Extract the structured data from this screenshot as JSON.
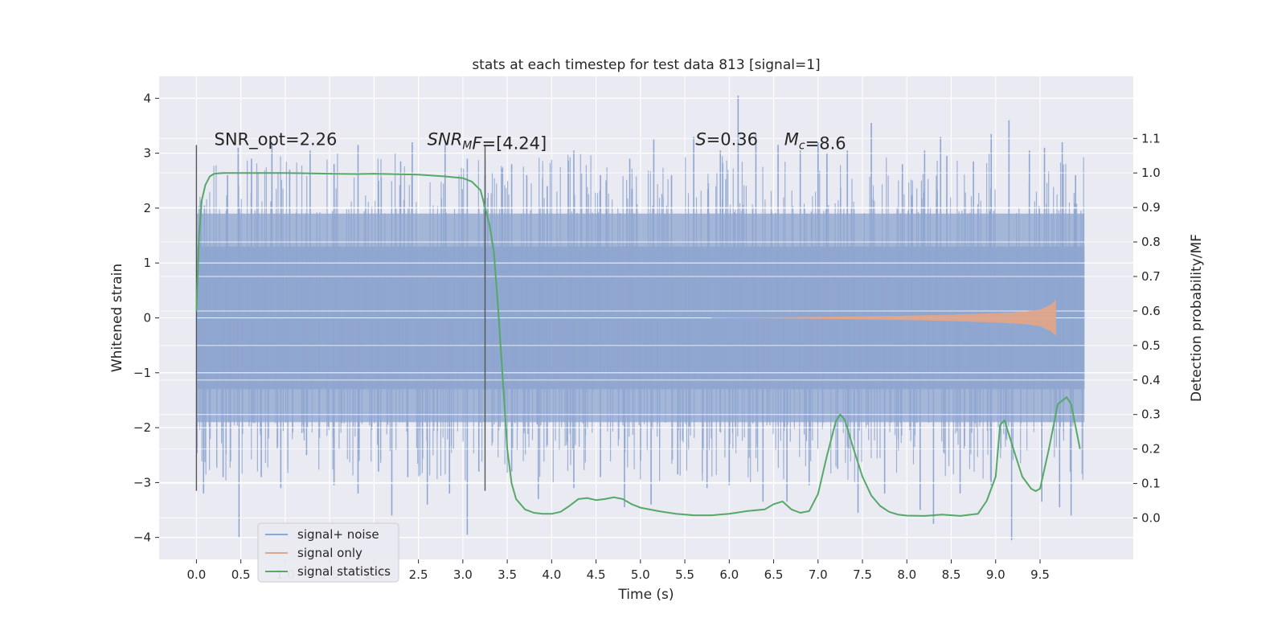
{
  "chart_data": {
    "type": "line",
    "title": "stats at each timestep for test data 813 [signal=1]",
    "xlabel": "Time (s)",
    "ylabel": "Whitened strain",
    "y2label": "Detection probability/MF",
    "xlim": [
      -0.42,
      10.55
    ],
    "ylim": [
      -4.4,
      4.4
    ],
    "y2lim": [
      -0.12,
      1.28
    ],
    "xticks": [
      0.0,
      0.5,
      1.0,
      1.5,
      2.0,
      2.5,
      3.0,
      3.5,
      4.0,
      4.5,
      5.0,
      5.5,
      6.0,
      6.5,
      7.0,
      7.5,
      8.0,
      8.5,
      9.0,
      9.5
    ],
    "xtick_labels": [
      "0.0",
      "0.5",
      "1.0",
      "1.5",
      "2.0",
      "2.5",
      "3.0",
      "3.5",
      "4.0",
      "4.5",
      "5.0",
      "5.5",
      "6.0",
      "6.5",
      "7.0",
      "7.5",
      "8.0",
      "8.5",
      "9.0",
      "9.5"
    ],
    "yticks": [
      -4,
      -3,
      -2,
      -1,
      0,
      1,
      2,
      3,
      4
    ],
    "ytick_labels": [
      "−4",
      "−3",
      "−2",
      "−1",
      "0",
      "1",
      "2",
      "3",
      "4"
    ],
    "y2ticks": [
      0.0,
      0.1,
      0.2,
      0.3,
      0.4,
      0.5,
      0.6,
      0.7,
      0.8,
      0.9,
      1.0,
      1.1
    ],
    "y2tick_labels": [
      "0.0",
      "0.1",
      "0.2",
      "0.3",
      "0.4",
      "0.5",
      "0.6",
      "0.7",
      "0.8",
      "0.9",
      "1.0",
      "1.1"
    ],
    "series": [
      {
        "name": "signal+ noise",
        "axis": "left",
        "color": "#8fa6d0",
        "x_range": [
          0.0,
          10.0
        ],
        "band_quantiles": {
          "q05": -1.9,
          "q20": -1.3,
          "q80": 1.3,
          "q95": 1.9
        },
        "spike_peaks": [
          [
            0.09,
            2.05
          ],
          [
            0.35,
            2.6
          ],
          [
            0.47,
            3.1
          ],
          [
            0.62,
            2.9
          ],
          [
            0.85,
            3.2
          ],
          [
            1.05,
            2.7
          ],
          [
            1.28,
            3.05
          ],
          [
            1.55,
            2.8
          ],
          [
            1.82,
            3.15
          ],
          [
            2.05,
            2.5
          ],
          [
            2.3,
            2.85
          ],
          [
            2.43,
            3.2
          ],
          [
            2.8,
            3.15
          ],
          [
            3.05,
            2.9
          ],
          [
            3.25,
            2.6
          ],
          [
            3.55,
            2.8
          ],
          [
            3.72,
            2.6
          ],
          [
            3.95,
            2.4
          ],
          [
            4.25,
            3.05
          ],
          [
            4.55,
            2.6
          ],
          [
            4.88,
            2.9
          ],
          [
            5.15,
            3.25
          ],
          [
            5.35,
            2.6
          ],
          [
            5.6,
            3.3
          ],
          [
            5.9,
            3.05
          ],
          [
            6.1,
            4.05
          ],
          [
            6.3,
            3.35
          ],
          [
            6.55,
            3.15
          ],
          [
            6.8,
            3.05
          ],
          [
            7.0,
            3.2
          ],
          [
            7.1,
            3.0
          ],
          [
            7.33,
            3.05
          ],
          [
            7.6,
            3.55
          ],
          [
            7.95,
            2.8
          ],
          [
            8.2,
            3.05
          ],
          [
            8.38,
            3.3
          ],
          [
            8.45,
            2.95
          ],
          [
            8.75,
            2.85
          ],
          [
            8.95,
            3.35
          ],
          [
            9.15,
            3.6
          ],
          [
            9.38,
            3.05
          ],
          [
            9.55,
            3.1
          ],
          [
            9.75,
            3.2
          ],
          [
            9.9,
            2.6
          ]
        ],
        "spike_troughs": [
          [
            0.08,
            -3.2
          ],
          [
            0.3,
            -2.9
          ],
          [
            0.48,
            -4.0
          ],
          [
            0.73,
            -2.9
          ],
          [
            0.95,
            -3.1
          ],
          [
            1.24,
            -2.5
          ],
          [
            1.55,
            -3.05
          ],
          [
            1.82,
            -3.2
          ],
          [
            2.05,
            -2.8
          ],
          [
            2.2,
            -3.6
          ],
          [
            2.38,
            -2.9
          ],
          [
            2.6,
            -3.4
          ],
          [
            2.85,
            -3.2
          ],
          [
            3.05,
            -3.95
          ],
          [
            3.18,
            -2.8
          ],
          [
            3.55,
            -2.8
          ],
          [
            3.85,
            -3.3
          ],
          [
            4.25,
            -3.1
          ],
          [
            4.55,
            -2.9
          ],
          [
            4.82,
            -3.45
          ],
          [
            5.12,
            -3.4
          ],
          [
            5.42,
            -2.85
          ],
          [
            5.75,
            -3.1
          ],
          [
            6.0,
            -3.05
          ],
          [
            6.38,
            -3.35
          ],
          [
            6.65,
            -3.35
          ],
          [
            6.9,
            -3.05
          ],
          [
            7.22,
            -2.75
          ],
          [
            7.45,
            -3.55
          ],
          [
            7.75,
            -3.2
          ],
          [
            8.15,
            -3.5
          ],
          [
            8.3,
            -3.75
          ],
          [
            8.6,
            -3.2
          ],
          [
            8.95,
            -3.05
          ],
          [
            9.18,
            -4.05
          ],
          [
            9.52,
            -3.35
          ],
          [
            9.72,
            -3.45
          ],
          [
            9.85,
            -3.6
          ]
        ]
      },
      {
        "name": "signal only",
        "axis": "left",
        "color": "#e0a58a",
        "envelope": {
          "x": [
            5.8,
            6.5,
            7.0,
            7.5,
            8.0,
            8.5,
            9.0,
            9.3,
            9.5,
            9.62,
            9.68
          ],
          "amp": [
            0.005,
            0.01,
            0.018,
            0.028,
            0.04,
            0.058,
            0.085,
            0.11,
            0.15,
            0.24,
            0.33
          ]
        }
      },
      {
        "name": "signal statistics",
        "axis": "right",
        "color": "#55a868",
        "x": [
          0.0,
          0.03,
          0.06,
          0.1,
          0.15,
          0.2,
          0.3,
          0.5,
          1.0,
          1.5,
          1.8,
          2.0,
          2.5,
          2.8,
          3.0,
          3.1,
          3.2,
          3.3,
          3.35,
          3.4,
          3.45,
          3.5,
          3.55,
          3.6,
          3.7,
          3.8,
          3.9,
          4.0,
          4.1,
          4.2,
          4.3,
          4.4,
          4.5,
          4.6,
          4.7,
          4.8,
          4.9,
          5.0,
          5.2,
          5.4,
          5.6,
          5.8,
          6.0,
          6.2,
          6.4,
          6.5,
          6.6,
          6.7,
          6.8,
          6.9,
          7.0,
          7.1,
          7.2,
          7.25,
          7.3,
          7.4,
          7.5,
          7.6,
          7.7,
          7.8,
          7.9,
          8.0,
          8.2,
          8.4,
          8.6,
          8.8,
          8.9,
          9.0,
          9.05,
          9.1,
          9.2,
          9.3,
          9.4,
          9.45,
          9.5,
          9.6,
          9.7,
          9.8,
          9.85,
          9.95
        ],
        "y": [
          0.6,
          0.82,
          0.92,
          0.965,
          0.99,
          0.998,
          1.0,
          1.0,
          1.0,
          0.998,
          0.997,
          0.998,
          0.995,
          0.99,
          0.985,
          0.975,
          0.95,
          0.85,
          0.77,
          0.6,
          0.4,
          0.2,
          0.1,
          0.055,
          0.025,
          0.015,
          0.012,
          0.012,
          0.018,
          0.035,
          0.055,
          0.058,
          0.052,
          0.055,
          0.06,
          0.055,
          0.04,
          0.03,
          0.02,
          0.012,
          0.008,
          0.008,
          0.012,
          0.02,
          0.025,
          0.04,
          0.048,
          0.025,
          0.015,
          0.02,
          0.07,
          0.18,
          0.28,
          0.3,
          0.285,
          0.2,
          0.12,
          0.065,
          0.035,
          0.018,
          0.01,
          0.007,
          0.006,
          0.01,
          0.006,
          0.012,
          0.05,
          0.12,
          0.27,
          0.283,
          0.2,
          0.12,
          0.085,
          0.078,
          0.085,
          0.2,
          0.33,
          0.35,
          0.33,
          0.2
        ]
      }
    ],
    "vlines": [
      0.0,
      3.25
    ],
    "vline_ylim": [
      -3.15,
      3.15
    ],
    "annotations": [
      {
        "x": 0.2,
        "y": 3.15,
        "parts": [
          {
            "t": "SNR_opt=2.26"
          }
        ]
      },
      {
        "x": 2.6,
        "y": 3.15,
        "parts": [
          {
            "t": "SNR",
            "i": true
          },
          {
            "t": "M",
            "i": true,
            "sub": true
          },
          {
            "t": "F",
            "i": true
          },
          {
            "t": "=[4.24]"
          }
        ]
      },
      {
        "x": 5.62,
        "y": 3.15,
        "parts": [
          {
            "t": "S",
            "i": true
          },
          {
            "t": "=0.36"
          }
        ]
      },
      {
        "x": 6.62,
        "y": 3.15,
        "parts": [
          {
            "t": "M",
            "i": true
          },
          {
            "t": "c",
            "i": true,
            "sub": true
          },
          {
            "t": "=8.6"
          }
        ]
      }
    ],
    "legend": {
      "position": "lower-left",
      "entries": [
        {
          "label": "signal+ noise",
          "color": "#8fa6d0"
        },
        {
          "label": "signal only",
          "color": "#e0a58a"
        },
        {
          "label": "signal statistics",
          "color": "#55a868"
        }
      ]
    },
    "colors": {
      "background": "#eaeaf2",
      "grid": "#ffffff",
      "vline": "#555555",
      "text": "#262626"
    }
  }
}
